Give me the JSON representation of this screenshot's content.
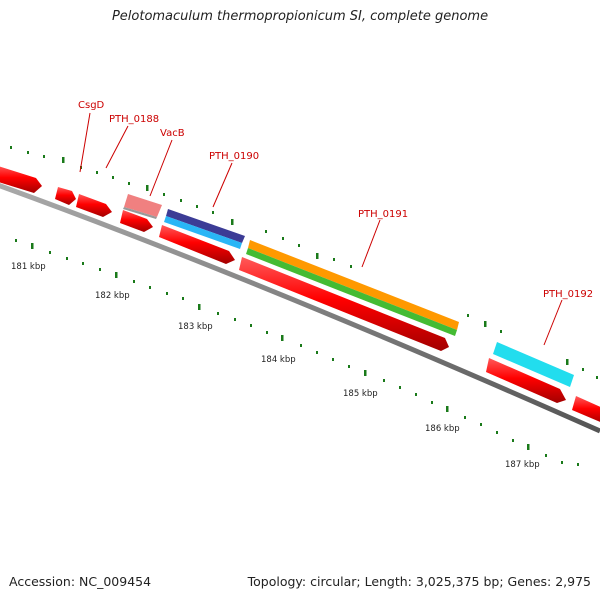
{
  "title": "Pelotomaculum thermopropionicum SI, complete genome",
  "footer": {
    "accession": "Accession: NC_009454",
    "summary": "Topology: circular; Length: 3,025,375 bp; Genes: 2,975"
  },
  "colors": {
    "background": "#ffffff",
    "backbone": "#888888",
    "cds": "#ff0000",
    "tick": "#1a7a1a",
    "gene_label": "#cc0000",
    "pseudo_gene": "#f08080",
    "navy": "#3c3c96",
    "sky_blue": "#29b6f6",
    "orange": "#ff9900",
    "green": "#44bb33",
    "cyan": "#22ddee"
  },
  "scale_labels": [
    "181 kbp",
    "182 kbp",
    "183 kbp",
    "184 kbp",
    "185 kbp",
    "186 kbp",
    "187 kbp"
  ],
  "gene_labels": [
    "CsgD",
    "PTH_0188",
    "VacB",
    "PTH_0190",
    "PTH_0191",
    "PTH_0192"
  ]
}
